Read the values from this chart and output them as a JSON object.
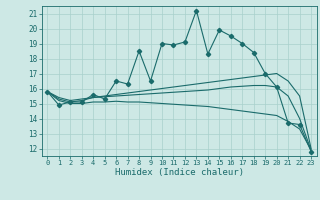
{
  "xlabel": "Humidex (Indice chaleur)",
  "bg_color": "#cde8e5",
  "grid_color": "#a8d0cc",
  "line_color": "#1a6b6b",
  "x_ticks": [
    0,
    1,
    2,
    3,
    4,
    5,
    6,
    7,
    8,
    9,
    10,
    11,
    12,
    13,
    14,
    15,
    16,
    17,
    18,
    19,
    20,
    21,
    22,
    23
  ],
  "y_ticks": [
    12,
    13,
    14,
    15,
    16,
    17,
    18,
    19,
    20,
    21
  ],
  "ylim": [
    11.5,
    21.5
  ],
  "xlim": [
    -0.5,
    23.5
  ],
  "main_series": [
    15.8,
    14.9,
    15.1,
    15.1,
    15.6,
    15.3,
    16.5,
    16.3,
    18.5,
    16.5,
    19.0,
    18.9,
    19.1,
    21.2,
    18.3,
    19.9,
    19.5,
    19.0,
    18.4,
    17.0,
    16.1,
    13.7,
    13.6,
    11.8
  ],
  "line1": [
    15.8,
    15.3,
    15.1,
    15.2,
    15.4,
    15.5,
    15.6,
    15.7,
    15.8,
    15.9,
    16.0,
    16.1,
    16.2,
    16.3,
    16.4,
    16.5,
    16.6,
    16.7,
    16.8,
    16.9,
    17.0,
    16.5,
    15.5,
    12.0
  ],
  "line2": [
    15.8,
    15.4,
    15.2,
    15.3,
    15.4,
    15.45,
    15.5,
    15.55,
    15.6,
    15.65,
    15.7,
    15.75,
    15.8,
    15.85,
    15.9,
    16.0,
    16.1,
    16.15,
    16.2,
    16.2,
    16.1,
    15.5,
    14.0,
    11.9
  ],
  "line3": [
    15.8,
    15.2,
    15.0,
    15.0,
    15.1,
    15.1,
    15.15,
    15.1,
    15.1,
    15.05,
    15.0,
    14.95,
    14.9,
    14.85,
    14.8,
    14.7,
    14.6,
    14.5,
    14.4,
    14.3,
    14.2,
    13.8,
    13.3,
    11.9
  ]
}
